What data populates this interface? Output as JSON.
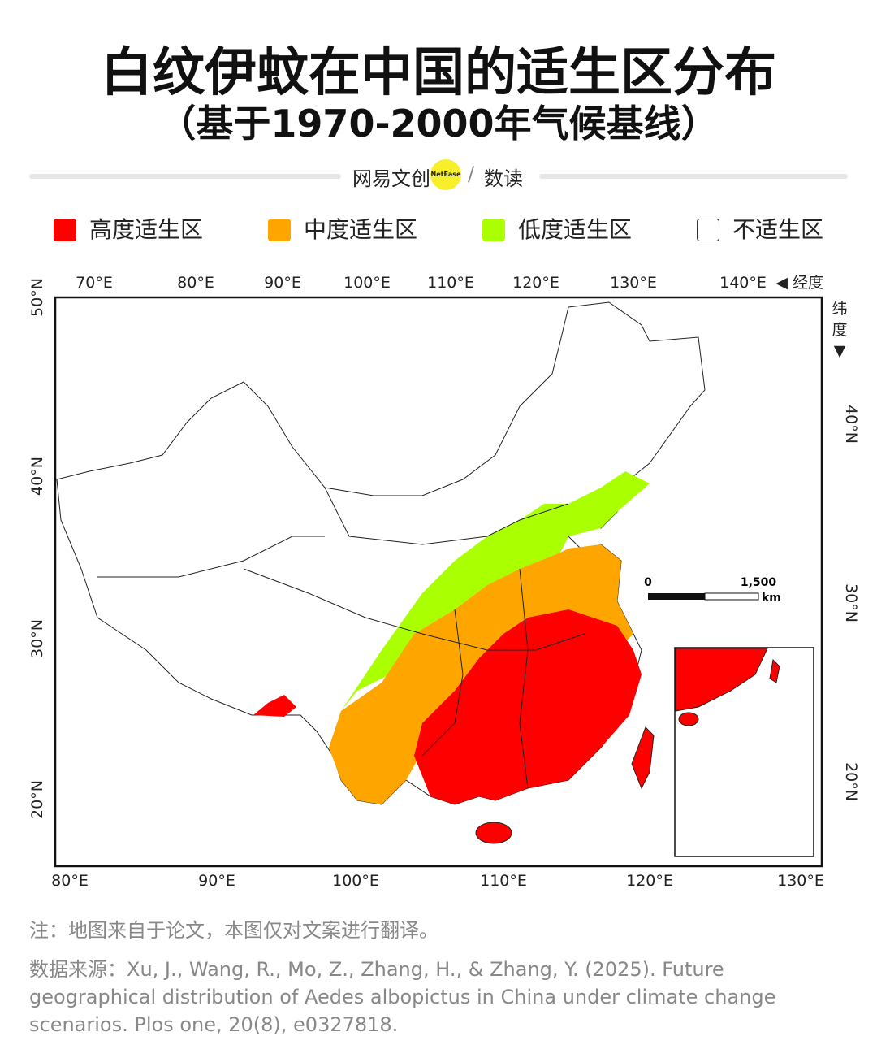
{
  "header": {
    "title": "白纹伊蚊在中国的适生区分布",
    "subtitle": "（基于1970-2000年气候基线）"
  },
  "brand": {
    "name": "网易文创",
    "badge": "NetEase",
    "separator": "/",
    "section": "数读"
  },
  "legend": [
    {
      "label": "高度适生区",
      "color": "#ff0000"
    },
    {
      "label": "中度适生区",
      "color": "#ffa500"
    },
    {
      "label": "低度适生区",
      "color": "#aaff00"
    },
    {
      "label": "不适生区",
      "color": "#ffffff"
    }
  ],
  "map": {
    "top_axis": [
      "70°E",
      "80°E",
      "90°E",
      "100°E",
      "110°E",
      "120°E",
      "130°E",
      "140°E"
    ],
    "top_axis_name": "◀ 经度",
    "right_axis_name": [
      "纬",
      "度",
      "▼"
    ],
    "left_axis": [
      "50°N",
      "40°N",
      "30°N",
      "20°N"
    ],
    "right_axis": [
      "40°N",
      "30°N",
      "20°N"
    ],
    "bottom_axis": [
      "80°E",
      "90°E",
      "100°E",
      "110°E",
      "120°E",
      "130°E"
    ],
    "scale": {
      "start": "0",
      "end": "1,500",
      "unit": "km"
    }
  },
  "notes": [
    "注：地图来自于论文，本图仅对文案进行翻译。",
    "数据来源：Xu, J., Wang, R., Mo, Z., Zhang, H., & Zhang, Y. (2025). Future geographical distribution of Aedes albopictus in China under climate change scenarios. Plos one, 20(8), e0327818."
  ]
}
